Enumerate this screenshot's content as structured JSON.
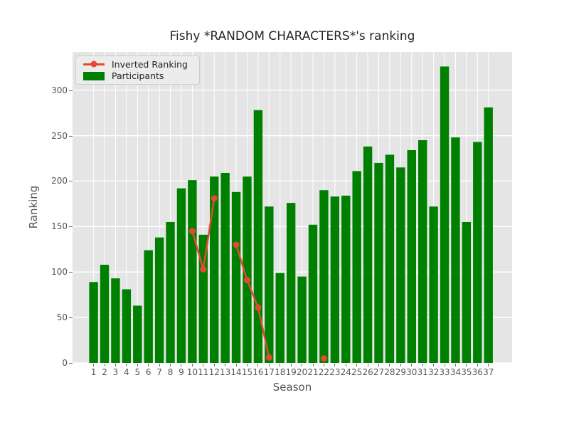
{
  "title": "Fishy *RANDOM CHARACTERS*'s ranking",
  "axes": {
    "xlabel": "Season",
    "ylabel": "Ranking"
  },
  "legend": {
    "line_label": "Inverted Ranking",
    "bar_label": "Participants"
  },
  "colors": {
    "bar": "#008000",
    "line": "#E24A33",
    "plot_bg": "#E5E5E5",
    "grid": "#FFFFFF",
    "tick_text": "#555555",
    "title_text": "#262626",
    "legend_bg": "#ECECEC",
    "legend_border": "#CCCCCC",
    "figure_bg": "#FFFFFF"
  },
  "chart_data": {
    "type": "bar",
    "title": "Fishy *RANDOM CHARACTERS*'s ranking",
    "xlabel": "Season",
    "ylabel": "Ranking",
    "categories": [
      1,
      2,
      3,
      4,
      5,
      6,
      7,
      8,
      9,
      10,
      11,
      12,
      13,
      14,
      15,
      16,
      17,
      18,
      19,
      20,
      21,
      22,
      23,
      24,
      25,
      26,
      27,
      28,
      29,
      30,
      31,
      32,
      33,
      34,
      35,
      36,
      37
    ],
    "series": [
      {
        "name": "Participants",
        "type": "bar",
        "color": "#008000",
        "values": [
          89,
          108,
          93,
          81,
          63,
          124,
          138,
          155,
          192,
          201,
          141,
          205,
          209,
          188,
          205,
          278,
          172,
          99,
          176,
          95,
          152,
          190,
          183,
          184,
          211,
          238,
          220,
          229,
          215,
          234,
          245,
          172,
          326,
          248,
          155,
          243,
          281
        ]
      },
      {
        "name": "Inverted Ranking",
        "type": "line",
        "color": "#E24A33",
        "values": [
          null,
          null,
          null,
          null,
          null,
          null,
          null,
          null,
          null,
          145,
          103,
          181,
          null,
          130,
          91,
          61,
          6,
          null,
          null,
          null,
          null,
          5,
          null,
          null,
          null,
          null,
          null,
          null,
          null,
          null,
          null,
          null,
          null,
          null,
          null,
          null,
          null
        ]
      }
    ],
    "yticks": [
      0,
      50,
      100,
      150,
      200,
      250,
      300
    ],
    "ylim": [
      0,
      342
    ],
    "grid": true,
    "legend_position": "upper left",
    "style": "ggplot"
  }
}
